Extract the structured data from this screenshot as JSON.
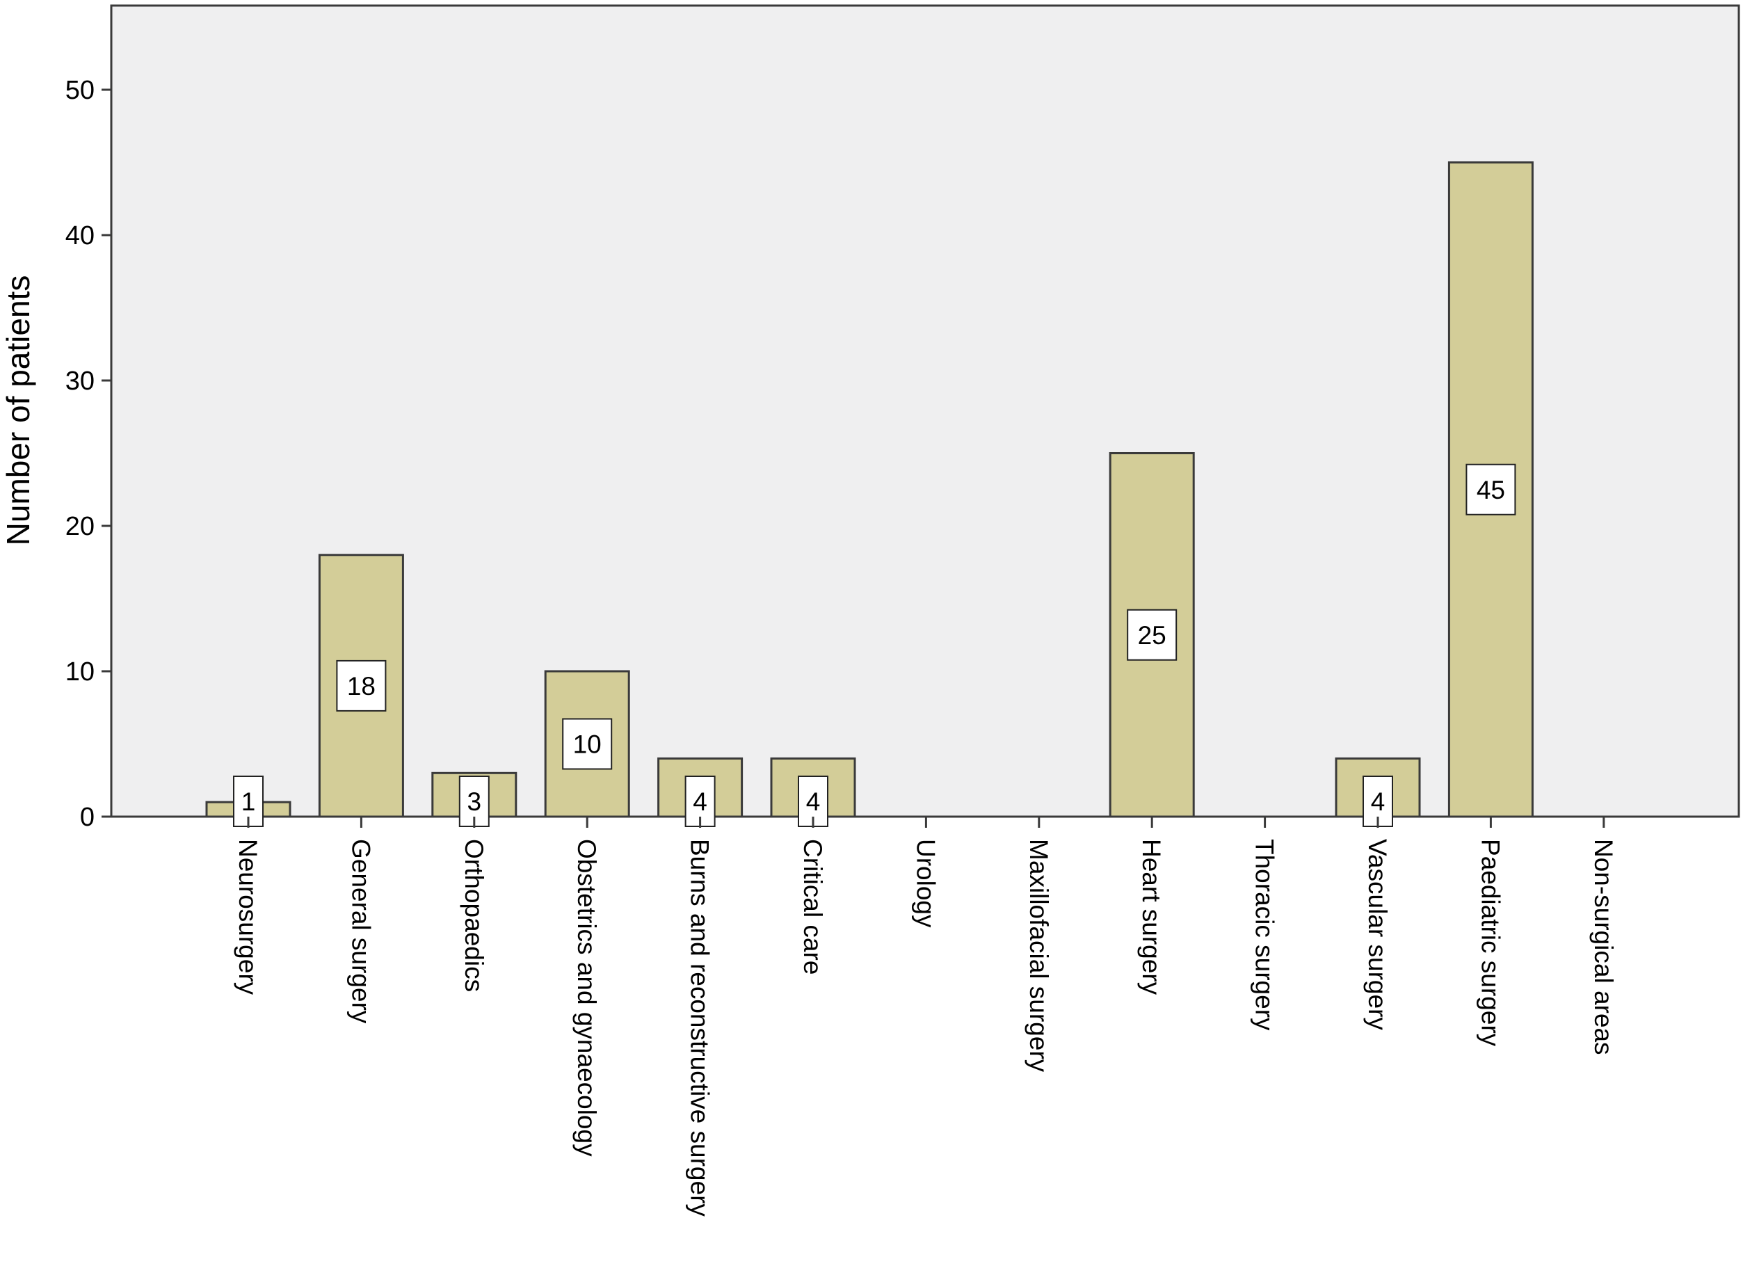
{
  "chart_data": {
    "type": "bar",
    "title": "",
    "xlabel": "",
    "ylabel": "Number of patients",
    "ylim": [
      0,
      55
    ],
    "yticks": [
      0,
      10,
      20,
      30,
      40,
      50
    ],
    "grid": false,
    "colors": {
      "plot_background": "#efeff0",
      "bar_fill": "#d3cd98",
      "bar_stroke": "#3a3a3a",
      "axis": "#3a3a3a",
      "label_box": "#ffffff"
    },
    "categories": [
      "Neurosurgery",
      "General surgery",
      "Orthopaedics",
      "Obstetrics and gynaecology",
      "Burns and reconstructive surgery",
      "Critical care",
      "Urology",
      "Maxillofacial surgery",
      "Heart surgery",
      "Thoracic surgery",
      "Vascular surgery",
      "Paediatric surgery",
      "Non-surgical areas"
    ],
    "values": [
      1,
      18,
      3,
      10,
      4,
      4,
      0,
      0,
      25,
      0,
      4,
      45,
      0
    ],
    "data_labels": [
      "1",
      "18",
      "3",
      "10",
      "4",
      "4",
      "",
      "",
      "25",
      "",
      "4",
      "45",
      ""
    ]
  }
}
